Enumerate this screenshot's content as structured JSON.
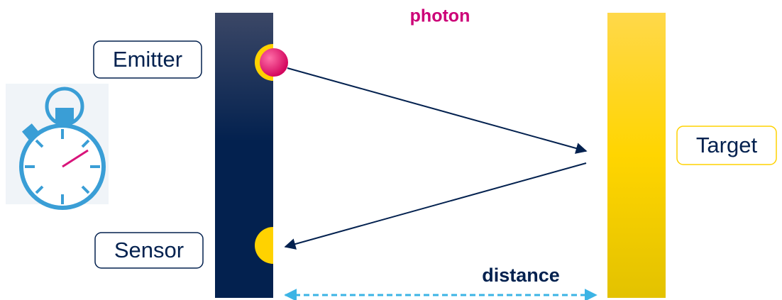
{
  "labels": {
    "photon": "photon",
    "emitter": "Emitter",
    "sensor": "Sensor",
    "target": "Target",
    "distance": "distance"
  }
}
